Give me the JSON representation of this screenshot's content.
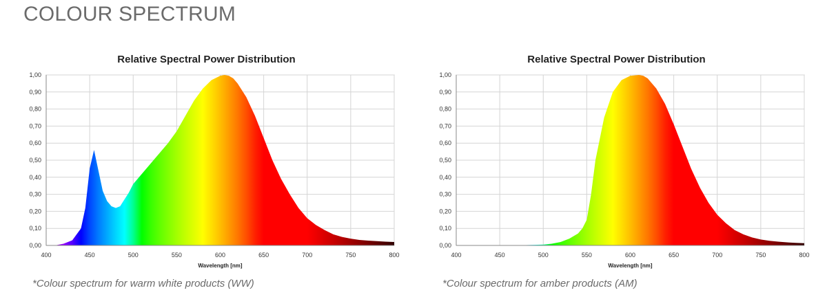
{
  "page": {
    "title": "COLOUR SPECTRUM"
  },
  "captions": [
    "*Colour spectrum for warm white products (WW)",
    "*Colour spectrum for amber products (AM)"
  ],
  "chart_data": [
    {
      "type": "area",
      "title": "Relative Spectral Power Distribution",
      "xlabel": "Wavelength [nm]",
      "ylabel": "",
      "xlim": [
        400,
        800
      ],
      "ylim": [
        0,
        1
      ],
      "x_ticks": [
        400,
        450,
        500,
        550,
        600,
        650,
        700,
        750,
        800
      ],
      "y_ticks": [
        "0,00",
        "0,10",
        "0,20",
        "0,30",
        "0,40",
        "0,50",
        "0,60",
        "0,70",
        "0,80",
        "0,90",
        "1,00"
      ],
      "grid": true,
      "fill": "visible-spectrum gradient",
      "series": [
        {
          "x": [
            400,
            410,
            420,
            430,
            440,
            445,
            450,
            455,
            460,
            465,
            470,
            475,
            480,
            485,
            490,
            495,
            500,
            510,
            520,
            530,
            540,
            550,
            560,
            570,
            580,
            590,
            600,
            605,
            610,
            615,
            620,
            630,
            640,
            650,
            660,
            670,
            680,
            690,
            700,
            710,
            720,
            730,
            740,
            750,
            760,
            770,
            780,
            790,
            800
          ],
          "values": [
            0.0,
            0.0,
            0.01,
            0.03,
            0.1,
            0.22,
            0.45,
            0.56,
            0.44,
            0.32,
            0.26,
            0.23,
            0.22,
            0.23,
            0.27,
            0.31,
            0.36,
            0.42,
            0.48,
            0.54,
            0.6,
            0.67,
            0.76,
            0.85,
            0.92,
            0.97,
            0.995,
            1.0,
            0.995,
            0.98,
            0.95,
            0.87,
            0.76,
            0.63,
            0.5,
            0.39,
            0.3,
            0.22,
            0.16,
            0.12,
            0.09,
            0.065,
            0.05,
            0.04,
            0.032,
            0.028,
            0.025,
            0.022,
            0.02
          ]
        }
      ]
    },
    {
      "type": "area",
      "title": "Relative Spectral Power Distribution",
      "xlabel": "Wavelength [nm]",
      "ylabel": "",
      "xlim": [
        400,
        800
      ],
      "ylim": [
        0,
        1
      ],
      "x_ticks": [
        400,
        450,
        500,
        550,
        600,
        650,
        700,
        750,
        800
      ],
      "y_ticks": [
        "0,00",
        "0,10",
        "0,20",
        "0,30",
        "0,40",
        "0,50",
        "0,60",
        "0,70",
        "0,80",
        "0,90",
        "1,00"
      ],
      "grid": true,
      "fill": "visible-spectrum gradient",
      "series": [
        {
          "x": [
            400,
            450,
            480,
            500,
            510,
            520,
            530,
            540,
            545,
            550,
            555,
            560,
            570,
            580,
            590,
            600,
            610,
            615,
            620,
            630,
            640,
            650,
            660,
            670,
            680,
            690,
            700,
            710,
            720,
            730,
            740,
            750,
            760,
            770,
            780,
            790,
            800
          ],
          "values": [
            0.0,
            0.0,
            0.002,
            0.005,
            0.01,
            0.02,
            0.04,
            0.07,
            0.1,
            0.15,
            0.3,
            0.5,
            0.75,
            0.9,
            0.97,
            0.995,
            1.0,
            0.995,
            0.98,
            0.92,
            0.83,
            0.71,
            0.58,
            0.45,
            0.34,
            0.25,
            0.18,
            0.13,
            0.09,
            0.065,
            0.047,
            0.035,
            0.027,
            0.022,
            0.018,
            0.015,
            0.013
          ]
        }
      ]
    }
  ]
}
